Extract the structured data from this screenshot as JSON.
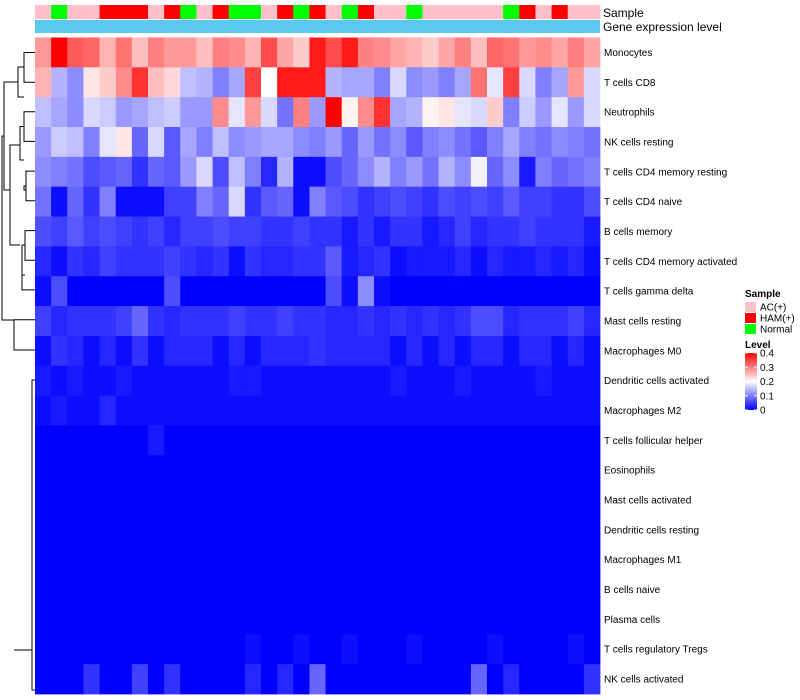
{
  "chart_data": {
    "type": "heatmap",
    "annotation_labels": {
      "sample": "Sample",
      "gene_expression": "Gene expression level"
    },
    "sample_groups": [
      "AC(+)",
      "HAM(+)",
      "Normal"
    ],
    "sample_group_colors": {
      "AC(+)": "#ffc0cb",
      "HAM(+)": "#ff0000",
      "Normal": "#00ff00"
    },
    "samples": [
      "AC(+)",
      "Normal",
      "AC(+)",
      "AC(+)",
      "HAM(+)",
      "HAM(+)",
      "HAM(+)",
      "AC(+)",
      "HAM(+)",
      "Normal",
      "AC(+)",
      "HAM(+)",
      "Normal",
      "Normal",
      "AC(+)",
      "HAM(+)",
      "Normal",
      "HAM(+)",
      "AC(+)",
      "Normal",
      "HAM(+)",
      "AC(+)",
      "AC(+)",
      "Normal",
      "AC(+)",
      "AC(+)",
      "AC(+)",
      "AC(+)",
      "AC(+)",
      "Normal",
      "HAM(+)",
      "AC(+)",
      "HAM(+)",
      "AC(+)",
      "AC(+)"
    ],
    "gene_expression_color": "#5bc8ee",
    "rows": [
      "Monocytes",
      "T cells CD8",
      "Neutrophils",
      "NK cells resting",
      "T cells CD4 memory resting",
      "T cells CD4 naive",
      "B cells memory",
      "T cells CD4 memory activated",
      "T cells gamma delta",
      "Mast cells resting",
      "Macrophages M0",
      "Dendritic cells activated",
      "Macrophages M2",
      "T cells follicular helper",
      "Eosinophils",
      "Mast cells activated",
      "Dendritic cells resting",
      "Macrophages M1",
      "B cells naive",
      "Plasma cells",
      "T cells regulatory  Tregs",
      "NK cells activated"
    ],
    "values": [
      [
        0.28,
        0.4,
        0.33,
        0.32,
        0.26,
        0.31,
        0.25,
        0.3,
        0.28,
        0.28,
        0.25,
        0.3,
        0.29,
        0.26,
        0.34,
        0.27,
        0.24,
        0.38,
        0.34,
        0.38,
        0.3,
        0.29,
        0.27,
        0.26,
        0.24,
        0.27,
        0.3,
        0.25,
        0.32,
        0.31,
        0.28,
        0.29,
        0.27,
        0.3,
        0.27
      ],
      [
        0.26,
        0.14,
        0.11,
        0.22,
        0.24,
        0.29,
        0.36,
        0.25,
        0.23,
        0.15,
        0.14,
        0.1,
        0.13,
        0.35,
        0.2,
        0.38,
        0.38,
        0.38,
        0.14,
        0.13,
        0.13,
        0.1,
        0.17,
        0.11,
        0.12,
        0.1,
        0.13,
        0.31,
        0.18,
        0.35,
        0.17,
        0.1,
        0.13,
        0.28,
        0.17
      ],
      [
        0.15,
        0.13,
        0.11,
        0.17,
        0.16,
        0.12,
        0.13,
        0.15,
        0.16,
        0.12,
        0.12,
        0.29,
        0.18,
        0.28,
        0.17,
        0.09,
        0.3,
        0.12,
        0.4,
        0.21,
        0.29,
        0.36,
        0.13,
        0.14,
        0.21,
        0.22,
        0.18,
        0.17,
        0.24,
        0.1,
        0.16,
        0.12,
        0.18,
        0.12,
        0.17
      ],
      [
        0.12,
        0.16,
        0.15,
        0.1,
        0.18,
        0.22,
        0.08,
        0.17,
        0.07,
        0.13,
        0.1,
        0.15,
        0.11,
        0.12,
        0.13,
        0.13,
        0.11,
        0.1,
        0.12,
        0.08,
        0.12,
        0.09,
        0.11,
        0.07,
        0.1,
        0.11,
        0.09,
        0.07,
        0.1,
        0.13,
        0.1,
        0.09,
        0.11,
        0.1,
        0.09
      ],
      [
        0.11,
        0.1,
        0.09,
        0.06,
        0.07,
        0.08,
        0.04,
        0.08,
        0.07,
        0.12,
        0.17,
        0.06,
        0.15,
        0.1,
        0.03,
        0.14,
        0.01,
        0.01,
        0.06,
        0.08,
        0.11,
        0.14,
        0.1,
        0.12,
        0.09,
        0.14,
        0.11,
        0.19,
        0.08,
        0.11,
        0.02,
        0.1,
        0.08,
        0.09,
        0.1
      ],
      [
        0.09,
        0.01,
        0.08,
        0.04,
        0.1,
        0.01,
        0.01,
        0.01,
        0.05,
        0.05,
        0.1,
        0.08,
        0.17,
        0.04,
        0.07,
        0.08,
        0.01,
        0.1,
        0.07,
        0.06,
        0.04,
        0.05,
        0.06,
        0.05,
        0.04,
        0.06,
        0.05,
        0.06,
        0.05,
        0.07,
        0.05,
        0.05,
        0.04,
        0.04,
        0.06
      ],
      [
        0.06,
        0.05,
        0.07,
        0.05,
        0.06,
        0.05,
        0.04,
        0.05,
        0.03,
        0.05,
        0.05,
        0.06,
        0.05,
        0.05,
        0.04,
        0.04,
        0.05,
        0.04,
        0.04,
        0.02,
        0.04,
        0.02,
        0.04,
        0.04,
        0.02,
        0.03,
        0.05,
        0.03,
        0.04,
        0.04,
        0.05,
        0.04,
        0.04,
        0.04,
        0.02
      ],
      [
        0.03,
        0.01,
        0.04,
        0.03,
        0.05,
        0.04,
        0.04,
        0.04,
        0.05,
        0.04,
        0.03,
        0.04,
        0.01,
        0.04,
        0.03,
        0.03,
        0.04,
        0.04,
        0.07,
        0.02,
        0.03,
        0.04,
        0.01,
        0.02,
        0.02,
        0.02,
        0.03,
        0.01,
        0.03,
        0.02,
        0.02,
        0.03,
        0.02,
        0.03,
        0.01
      ],
      [
        0.01,
        0.06,
        0.0,
        0.0,
        0.0,
        0.0,
        0.0,
        0.0,
        0.06,
        0.0,
        0.0,
        0.0,
        0.0,
        0.0,
        0.0,
        0.0,
        0.0,
        0.0,
        0.06,
        0.01,
        0.11,
        0.01,
        0.0,
        0.0,
        0.0,
        0.0,
        0.0,
        0.0,
        0.0,
        0.0,
        0.0,
        0.0,
        0.0,
        0.0,
        0.0
      ],
      [
        0.05,
        0.03,
        0.04,
        0.04,
        0.04,
        0.05,
        0.08,
        0.04,
        0.03,
        0.04,
        0.04,
        0.04,
        0.05,
        0.04,
        0.04,
        0.05,
        0.04,
        0.04,
        0.03,
        0.03,
        0.04,
        0.03,
        0.04,
        0.03,
        0.04,
        0.03,
        0.04,
        0.06,
        0.06,
        0.03,
        0.04,
        0.04,
        0.04,
        0.05,
        0.03
      ],
      [
        0.01,
        0.04,
        0.03,
        0.01,
        0.03,
        0.01,
        0.04,
        0.01,
        0.03,
        0.03,
        0.03,
        0.01,
        0.03,
        0.01,
        0.03,
        0.03,
        0.03,
        0.04,
        0.03,
        0.03,
        0.03,
        0.03,
        0.01,
        0.03,
        0.01,
        0.03,
        0.01,
        0.03,
        0.03,
        0.01,
        0.03,
        0.03,
        0.01,
        0.03,
        0.01
      ],
      [
        0.02,
        0.01,
        0.02,
        0.01,
        0.01,
        0.02,
        0.01,
        0.01,
        0.01,
        0.01,
        0.01,
        0.01,
        0.02,
        0.02,
        0.01,
        0.01,
        0.01,
        0.01,
        0.01,
        0.01,
        0.01,
        0.01,
        0.02,
        0.01,
        0.01,
        0.01,
        0.02,
        0.01,
        0.01,
        0.01,
        0.01,
        0.02,
        0.01,
        0.01,
        0.01
      ],
      [
        0.01,
        0.02,
        0.01,
        0.01,
        0.03,
        0.01,
        0.01,
        0.01,
        0.01,
        0.01,
        0.01,
        0.01,
        0.01,
        0.01,
        0.01,
        0.01,
        0.01,
        0.01,
        0.01,
        0.01,
        0.01,
        0.01,
        0.01,
        0.01,
        0.01,
        0.01,
        0.01,
        0.01,
        0.01,
        0.01,
        0.01,
        0.01,
        0.01,
        0.01,
        0.01
      ],
      [
        0.0,
        0.0,
        0.0,
        0.0,
        0.0,
        0.0,
        0.0,
        0.02,
        0.0,
        0.0,
        0.0,
        0.0,
        0.0,
        0.0,
        0.0,
        0.0,
        0.0,
        0.0,
        0.0,
        0.0,
        0.0,
        0.0,
        0.0,
        0.0,
        0.0,
        0.0,
        0.0,
        0.0,
        0.0,
        0.0,
        0.0,
        0.0,
        0.0,
        0.0,
        0.0
      ],
      [
        0.0,
        0.0,
        0.0,
        0.0,
        0.0,
        0.0,
        0.0,
        0.0,
        0.0,
        0.0,
        0.0,
        0.0,
        0.0,
        0.0,
        0.0,
        0.0,
        0.0,
        0.0,
        0.0,
        0.0,
        0.0,
        0.0,
        0.0,
        0.0,
        0.0,
        0.0,
        0.0,
        0.0,
        0.0,
        0.0,
        0.0,
        0.0,
        0.0,
        0.0,
        0.0
      ],
      [
        0.0,
        0.0,
        0.0,
        0.0,
        0.0,
        0.0,
        0.0,
        0.0,
        0.0,
        0.0,
        0.0,
        0.0,
        0.0,
        0.0,
        0.0,
        0.0,
        0.0,
        0.0,
        0.0,
        0.0,
        0.0,
        0.0,
        0.0,
        0.0,
        0.0,
        0.0,
        0.0,
        0.0,
        0.0,
        0.0,
        0.0,
        0.0,
        0.0,
        0.0,
        0.0
      ],
      [
        0.0,
        0.0,
        0.0,
        0.0,
        0.0,
        0.0,
        0.0,
        0.0,
        0.0,
        0.0,
        0.0,
        0.0,
        0.0,
        0.0,
        0.0,
        0.0,
        0.0,
        0.0,
        0.0,
        0.0,
        0.0,
        0.0,
        0.0,
        0.0,
        0.0,
        0.0,
        0.0,
        0.0,
        0.0,
        0.0,
        0.0,
        0.0,
        0.0,
        0.0,
        0.0
      ],
      [
        0.0,
        0.0,
        0.0,
        0.0,
        0.0,
        0.0,
        0.0,
        0.0,
        0.0,
        0.0,
        0.0,
        0.0,
        0.0,
        0.0,
        0.0,
        0.0,
        0.0,
        0.0,
        0.0,
        0.0,
        0.0,
        0.0,
        0.0,
        0.0,
        0.0,
        0.0,
        0.0,
        0.0,
        0.0,
        0.0,
        0.0,
        0.0,
        0.0,
        0.0,
        0.0
      ],
      [
        0.0,
        0.0,
        0.0,
        0.0,
        0.0,
        0.0,
        0.0,
        0.0,
        0.0,
        0.0,
        0.0,
        0.0,
        0.0,
        0.0,
        0.0,
        0.0,
        0.0,
        0.0,
        0.0,
        0.0,
        0.0,
        0.0,
        0.0,
        0.0,
        0.0,
        0.0,
        0.0,
        0.0,
        0.0,
        0.0,
        0.0,
        0.0,
        0.0,
        0.0,
        0.0
      ],
      [
        0.0,
        0.0,
        0.0,
        0.0,
        0.0,
        0.0,
        0.0,
        0.0,
        0.0,
        0.0,
        0.0,
        0.0,
        0.0,
        0.0,
        0.0,
        0.0,
        0.0,
        0.0,
        0.0,
        0.0,
        0.0,
        0.0,
        0.0,
        0.0,
        0.0,
        0.0,
        0.0,
        0.0,
        0.0,
        0.0,
        0.0,
        0.0,
        0.0,
        0.0,
        0.0
      ],
      [
        0.0,
        0.0,
        0.0,
        0.0,
        0.0,
        0.0,
        0.0,
        0.0,
        0.0,
        0.0,
        0.0,
        0.0,
        0.0,
        0.01,
        0.0,
        0.0,
        0.01,
        0.0,
        0.0,
        0.01,
        0.0,
        0.0,
        0.0,
        0.01,
        0.0,
        0.0,
        0.0,
        0.0,
        0.01,
        0.0,
        0.0,
        0.0,
        0.0,
        0.01,
        0.0
      ],
      [
        0.0,
        0.0,
        0.0,
        0.04,
        0.0,
        0.0,
        0.05,
        0.0,
        0.04,
        0.0,
        0.0,
        0.0,
        0.0,
        0.03,
        0.0,
        0.03,
        0.0,
        0.08,
        0.0,
        0.0,
        0.0,
        0.0,
        0.0,
        0.0,
        0.0,
        0.0,
        0.0,
        0.08,
        0.0,
        0.03,
        0.0,
        0.0,
        0.0,
        0.0,
        0.04
      ]
    ],
    "color_scale": {
      "min": 0,
      "max": 0.4,
      "low": "#0000ff",
      "mid": "#ffffff",
      "high": "#ff0000",
      "mid_value": 0.2
    },
    "legends": {
      "sample": {
        "title": "Sample",
        "entries": [
          "AC(+)",
          "HAM(+)",
          "Normal"
        ]
      },
      "level": {
        "title": "Level",
        "ticks": [
          "0.4",
          "0.3",
          "0.2",
          "0.1",
          "0"
        ],
        "tick_values": [
          0.4,
          0.3,
          0.2,
          0.1,
          0
        ]
      }
    }
  }
}
